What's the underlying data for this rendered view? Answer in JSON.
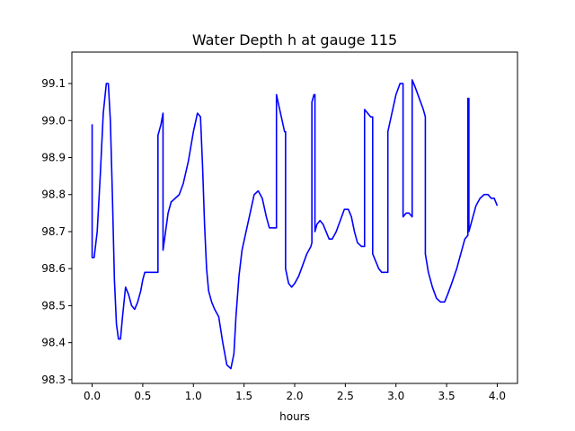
{
  "chart_data": {
    "type": "line",
    "title": "Water Depth h at gauge 115",
    "xlabel": "hours",
    "ylabel": "",
    "xlim": [
      -0.2,
      4.2
    ],
    "ylim": [
      98.29,
      99.185
    ],
    "x_ticks": [
      0.0,
      0.5,
      1.0,
      1.5,
      2.0,
      2.5,
      3.0,
      3.5,
      4.0
    ],
    "x_tick_labels": [
      "0.0",
      "0.5",
      "1.0",
      "1.5",
      "2.0",
      "2.5",
      "3.0",
      "3.5",
      "4.0"
    ],
    "y_ticks": [
      98.3,
      98.4,
      98.5,
      98.6,
      98.7,
      98.8,
      98.9,
      99.0,
      99.1
    ],
    "y_tick_labels": [
      "98.3",
      "98.4",
      "98.5",
      "98.6",
      "98.7",
      "98.8",
      "98.9",
      "99.0",
      "99.1"
    ],
    "grid": false,
    "line_color": "#0000ff",
    "series": [
      {
        "x": [
          0.0,
          0.0,
          0.02,
          0.05,
          0.08,
          0.11,
          0.14,
          0.16,
          0.18,
          0.2,
          0.22,
          0.24,
          0.26,
          0.28,
          0.3,
          0.33,
          0.36,
          0.39,
          0.42,
          0.45,
          0.48,
          0.5,
          0.52,
          0.55,
          0.58,
          0.62,
          0.65,
          0.65,
          0.68,
          0.7,
          0.7,
          0.72,
          0.75,
          0.78,
          0.82,
          0.86,
          0.9,
          0.95,
          1.0,
          1.04,
          1.07,
          1.09,
          1.11,
          1.13,
          1.15,
          1.18,
          1.21,
          1.25,
          1.29,
          1.33,
          1.37,
          1.4,
          1.42,
          1.45,
          1.48,
          1.52,
          1.56,
          1.6,
          1.64,
          1.68,
          1.72,
          1.75,
          1.78,
          1.82,
          1.82,
          1.86,
          1.9,
          1.91,
          1.91,
          1.94,
          1.97,
          2.0,
          2.04,
          2.08,
          2.12,
          2.16,
          2.17,
          2.17,
          2.19,
          2.2,
          2.2,
          2.22,
          2.25,
          2.28,
          2.31,
          2.34,
          2.37,
          2.41,
          2.45,
          2.49,
          2.53,
          2.56,
          2.59,
          2.62,
          2.66,
          2.69,
          2.69,
          2.72,
          2.75,
          2.77,
          2.77,
          2.8,
          2.83,
          2.86,
          2.89,
          2.92,
          2.92,
          2.96,
          3.0,
          3.04,
          3.07,
          3.07,
          3.1,
          3.13,
          3.16,
          3.16,
          3.19,
          3.23,
          3.27,
          3.29,
          3.29,
          3.32,
          3.36,
          3.4,
          3.44,
          3.48,
          3.51,
          3.55,
          3.6,
          3.64,
          3.68,
          3.71,
          3.71,
          3.72,
          3.72,
          3.75,
          3.79,
          3.83,
          3.87,
          3.91,
          3.94,
          3.97,
          4.0
        ],
        "y": [
          98.99,
          98.63,
          98.63,
          98.7,
          98.85,
          99.02,
          99.1,
          99.1,
          99.0,
          98.8,
          98.57,
          98.45,
          98.41,
          98.41,
          98.47,
          98.55,
          98.53,
          98.5,
          98.49,
          98.51,
          98.54,
          98.57,
          98.59,
          98.59,
          98.59,
          98.59,
          98.59,
          98.96,
          98.99,
          99.02,
          98.65,
          98.69,
          98.75,
          98.78,
          98.79,
          98.8,
          98.83,
          98.89,
          98.97,
          99.02,
          99.01,
          98.88,
          98.72,
          98.6,
          98.54,
          98.51,
          98.49,
          98.47,
          98.4,
          98.34,
          98.33,
          98.37,
          98.47,
          98.58,
          98.65,
          98.7,
          98.75,
          98.8,
          98.81,
          98.79,
          98.74,
          98.71,
          98.71,
          98.71,
          99.07,
          99.02,
          98.97,
          98.97,
          98.6,
          98.56,
          98.55,
          98.56,
          98.58,
          98.61,
          98.64,
          98.66,
          98.67,
          99.05,
          99.07,
          99.07,
          98.7,
          98.72,
          98.73,
          98.72,
          98.7,
          98.68,
          98.68,
          98.7,
          98.73,
          98.76,
          98.76,
          98.74,
          98.7,
          98.67,
          98.66,
          98.66,
          99.03,
          99.02,
          99.01,
          99.01,
          98.64,
          98.62,
          98.6,
          98.59,
          98.59,
          98.59,
          98.97,
          99.02,
          99.07,
          99.1,
          99.1,
          98.74,
          98.75,
          98.75,
          98.74,
          99.11,
          99.09,
          99.06,
          99.03,
          99.01,
          98.64,
          98.59,
          98.55,
          98.52,
          98.51,
          98.51,
          98.53,
          98.56,
          98.6,
          98.64,
          98.68,
          98.69,
          99.06,
          99.06,
          98.7,
          98.73,
          98.77,
          98.79,
          98.8,
          98.8,
          98.79,
          98.79,
          98.77
        ]
      }
    ]
  }
}
